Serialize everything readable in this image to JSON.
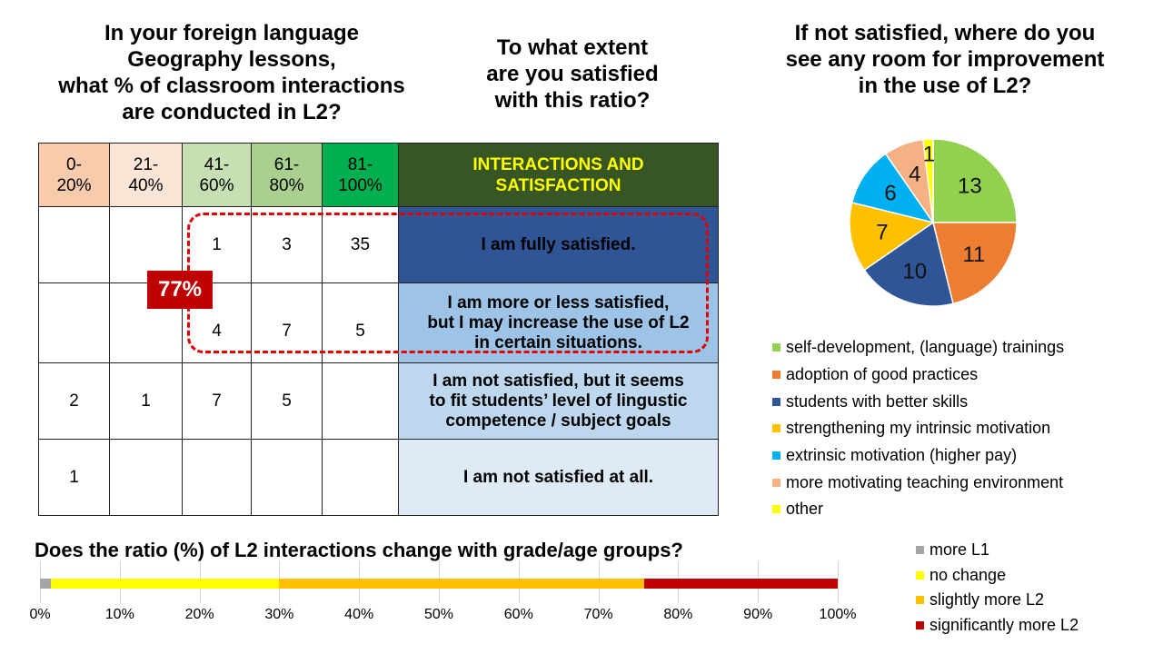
{
  "titles": {
    "interactions_question_lines": [
      "In your foreign language",
      "Geography lessons,",
      "what % of classroom interactions",
      "are conducted in L2?"
    ],
    "satisfaction_question_lines": [
      "To what extent",
      "are you satisfied",
      "with this ratio?"
    ],
    "improvement_question_lines": [
      "If not satisfied, where do you",
      "see any room for improvement",
      "in the use of L2?"
    ]
  },
  "matrix": {
    "headers": [
      {
        "line1": "0-",
        "line2": "20%",
        "color": "#f8cbad"
      },
      {
        "line1": "21-",
        "line2": "40%",
        "color": "#fce4d6"
      },
      {
        "line1": "41-",
        "line2": "60%",
        "color": "#c6e0b4"
      },
      {
        "line1": "61-",
        "line2": "80%",
        "color": "#a9d08e"
      },
      {
        "line1": "81-",
        "line2": "100%",
        "color": "#00b050"
      }
    ],
    "header_desc": {
      "line1": "INTERACTIONS AND",
      "line2": "SATISFACTION",
      "bg": "#375623",
      "color": "#ffff00"
    },
    "rows": [
      {
        "cells": [
          "",
          "",
          "1",
          "3",
          "35"
        ],
        "desc_lines": [
          "I am fully satisfied."
        ],
        "bg": "#2f5597"
      },
      {
        "cells": [
          "",
          "",
          "4",
          "7",
          "5"
        ],
        "desc_lines": [
          "I am more or less satisfied,",
          "but I may increase the use of L2",
          "in certain situations."
        ],
        "bg": "#9dc3e6"
      },
      {
        "cells": [
          "2",
          "1",
          "7",
          "5",
          ""
        ],
        "desc_lines": [
          "I am not satisfied, but it seems",
          "to fit students’ level of lingustic",
          "competence / subject goals"
        ],
        "bg": "#bdd7ee"
      },
      {
        "cells": [
          "1",
          "",
          "",
          "",
          ""
        ],
        "desc_lines": [
          "I am not satisfied at all."
        ],
        "bg": "#deebf7"
      }
    ],
    "highlight_badge": "77%",
    "highlight_color": "#c00000"
  },
  "chart_data": [
    {
      "type": "table",
      "title": "In your foreign language Geography lessons, what % of classroom interactions are conducted in L2? / To what extent are you satisfied with this ratio?",
      "columns": [
        "0-20%",
        "21-40%",
        "41-60%",
        "61-80%",
        "81-100%"
      ],
      "rows": [
        {
          "label": "I am fully satisfied.",
          "values": [
            null,
            null,
            1,
            3,
            35
          ]
        },
        {
          "label": "I am more or less satisfied, but I may increase the use of L2 in certain situations.",
          "values": [
            null,
            null,
            4,
            7,
            5
          ]
        },
        {
          "label": "I am not satisfied, but it seems to fit students’ level of lingustic competence / subject goals",
          "values": [
            2,
            1,
            7,
            5,
            null
          ]
        },
        {
          "label": "I am not satisfied at all.",
          "values": [
            1,
            null,
            null,
            null,
            null
          ]
        }
      ],
      "annotation": "77%"
    },
    {
      "type": "pie",
      "title": "If not satisfied, where do you see any room for improvement in the use of L2?",
      "categories": [
        "self-development, (language) trainings",
        "adoption of good practices",
        "students with better skills",
        "strengthening my intrinsic motivation",
        "extrinsic motivation (higher pay)",
        "more motivating teaching environment",
        "other"
      ],
      "values": [
        13,
        11,
        10,
        7,
        6,
        4,
        1
      ],
      "colors": [
        "#92d050",
        "#ed7d31",
        "#2f5597",
        "#ffc000",
        "#00b0f0",
        "#f4b183",
        "#ffff00"
      ],
      "legend_position": "bottom"
    },
    {
      "type": "bar",
      "orientation": "horizontal-stacked-100",
      "title": "Does the ratio (%) of L2 interactions change with grade/age groups?",
      "categories": [
        ""
      ],
      "series": [
        {
          "name": "more L1",
          "values": [
            1.4
          ],
          "color": "#a5a5a5"
        },
        {
          "name": "no change",
          "values": [
            28.6
          ],
          "color": "#ffff00"
        },
        {
          "name": "slightly more L2",
          "values": [
            45.7
          ],
          "color": "#ffc000"
        },
        {
          "name": "significantly more L2",
          "values": [
            24.3
          ],
          "color": "#c00000"
        }
      ],
      "xlim": [
        0,
        100
      ],
      "xticks": [
        "0%",
        "10%",
        "20%",
        "30%",
        "40%",
        "50%",
        "60%",
        "70%",
        "80%",
        "90%",
        "100%"
      ],
      "grid": true,
      "legend_position": "right"
    }
  ],
  "pie": {
    "legend": [
      {
        "label": "self-development, (language) trainings",
        "color": "#92d050"
      },
      {
        "label": "adoption of good practices",
        "color": "#ed7d31"
      },
      {
        "label": "students with better skills",
        "color": "#2f5597"
      },
      {
        "label": "strengthening my intrinsic motivation",
        "color": "#ffc000"
      },
      {
        "label": "extrinsic motivation (higher pay)",
        "color": "#00b0f0"
      },
      {
        "label": "more motivating teaching environment",
        "color": "#f4b183"
      },
      {
        "label": "other",
        "color": "#ffff00"
      }
    ]
  },
  "bar": {
    "title": "Does the ratio (%) of L2 interactions change with grade/age groups?",
    "legend": [
      {
        "label": "more L1",
        "color": "#a5a5a5"
      },
      {
        "label": "no change",
        "color": "#ffff00"
      },
      {
        "label": "slightly more L2",
        "color": "#ffc000"
      },
      {
        "label": "significantly more L2",
        "color": "#c00000"
      }
    ]
  }
}
